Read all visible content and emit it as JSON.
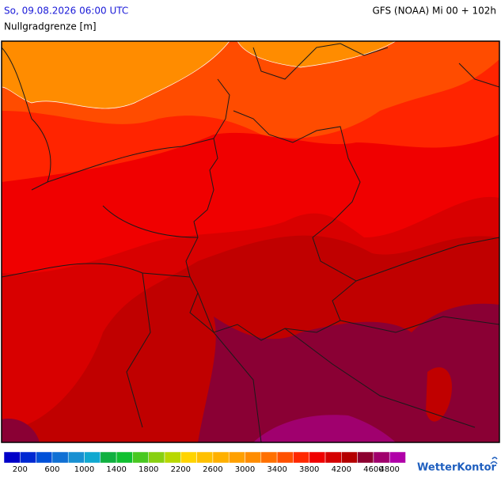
{
  "header": {
    "valid_time": "So, 09.08.2026 06:00 UTC",
    "model_run": "GFS (NOAA) Mi 00 + 102h",
    "parameter": "Nullgradgrenze [m]"
  },
  "legend": {
    "colors": [
      "#0000c8",
      "#0028d2",
      "#0050d8",
      "#1070d4",
      "#1890d2",
      "#10a8d0",
      "#10b040",
      "#10c030",
      "#48c820",
      "#88d010",
      "#b8d800",
      "#ffd400",
      "#ffc000",
      "#ffb000",
      "#ffa000",
      "#ff8c00",
      "#ff7000",
      "#ff5000",
      "#ff2800",
      "#f00000",
      "#d40000",
      "#b40000",
      "#8c0030",
      "#a0006c",
      "#b000a8"
    ],
    "labels": [
      200,
      600,
      1000,
      1400,
      1800,
      2200,
      2600,
      3000,
      3400,
      3800,
      4200,
      4600,
      4800
    ]
  },
  "logo": "WetterKontor"
}
